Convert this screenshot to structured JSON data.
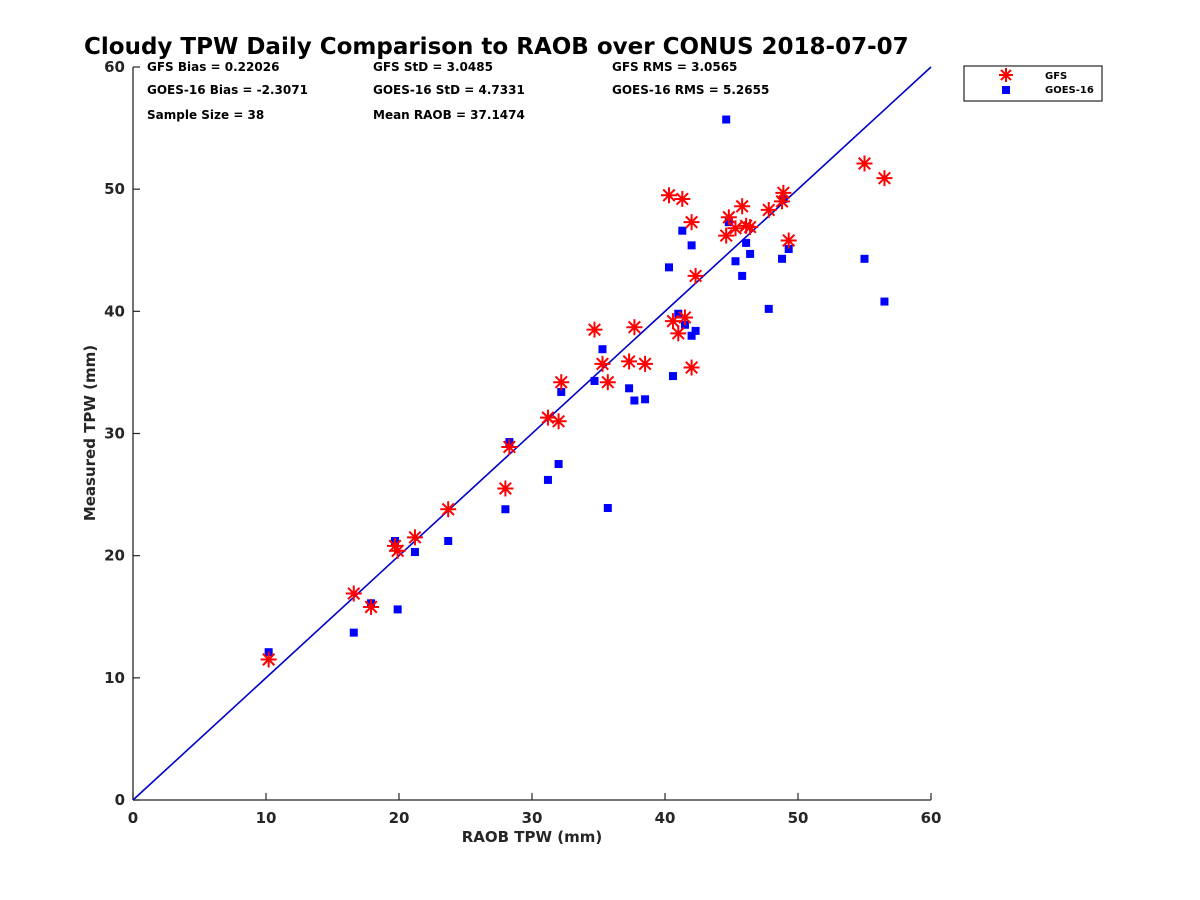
{
  "chart_data": {
    "type": "scatter",
    "title": "Cloudy TPW Daily Comparison to RAOB over CONUS 2018-07-07",
    "xlabel": "RAOB TPW (mm)",
    "ylabel": "Measured TPW (mm)",
    "xlim": [
      0,
      60
    ],
    "ylim": [
      0,
      60
    ],
    "xticks": [
      "0",
      "10",
      "20",
      "30",
      "40",
      "50",
      "60"
    ],
    "yticks": [
      "0",
      "10",
      "20",
      "30",
      "40",
      "50",
      "60"
    ],
    "grid": false,
    "legend_position": "top-right outside",
    "reference_line": {
      "name": "1:1 line",
      "x": [
        0,
        60
      ],
      "y": [
        0,
        60
      ],
      "color": "#0000cc"
    },
    "stats": {
      "gfs_bias": "GFS Bias = 0.22026",
      "gfs_std": "GFS StD = 3.0485",
      "gfs_rms": "GFS RMS = 3.0565",
      "goes_bias": "GOES-16 Bias = -2.3071",
      "goes_std": "GOES-16 StD = 4.7331",
      "goes_rms": "GOES-16 RMS = 5.2655",
      "sample_size": "Sample Size = 38",
      "mean_raob": "Mean RAOB = 37.1474"
    },
    "series": [
      {
        "name": "GFS",
        "marker": "asterisk",
        "color": "#ff0000",
        "points": [
          [
            10.2,
            11.5
          ],
          [
            16.6,
            16.9
          ],
          [
            17.9,
            15.8
          ],
          [
            19.7,
            20.8
          ],
          [
            19.9,
            20.4
          ],
          [
            21.2,
            21.5
          ],
          [
            23.7,
            23.8
          ],
          [
            28.0,
            25.5
          ],
          [
            28.3,
            28.9
          ],
          [
            31.2,
            31.3
          ],
          [
            32.0,
            31.0
          ],
          [
            32.2,
            34.2
          ],
          [
            34.7,
            38.5
          ],
          [
            35.3,
            35.7
          ],
          [
            35.7,
            34.2
          ],
          [
            37.3,
            35.9
          ],
          [
            37.7,
            38.7
          ],
          [
            38.5,
            35.7
          ],
          [
            40.3,
            49.5
          ],
          [
            40.6,
            39.2
          ],
          [
            41.0,
            38.2
          ],
          [
            41.3,
            49.2
          ],
          [
            41.5,
            39.5
          ],
          [
            42.0,
            47.3
          ],
          [
            42.0,
            35.4
          ],
          [
            42.3,
            42.9
          ],
          [
            44.6,
            46.2
          ],
          [
            44.8,
            47.7
          ],
          [
            45.3,
            46.8
          ],
          [
            45.8,
            48.6
          ],
          [
            46.1,
            47.0
          ],
          [
            46.4,
            46.9
          ],
          [
            47.8,
            48.3
          ],
          [
            48.8,
            49.0
          ],
          [
            48.9,
            49.7
          ],
          [
            49.3,
            45.8
          ],
          [
            55.0,
            52.1
          ],
          [
            56.5,
            50.9
          ]
        ]
      },
      {
        "name": "GOES-16",
        "marker": "square",
        "color": "#0000ff",
        "points": [
          [
            10.2,
            12.1
          ],
          [
            16.6,
            13.7
          ],
          [
            17.9,
            16.1
          ],
          [
            19.7,
            21.2
          ],
          [
            19.9,
            15.6
          ],
          [
            21.2,
            20.3
          ],
          [
            23.7,
            21.2
          ],
          [
            28.0,
            23.8
          ],
          [
            28.3,
            29.3
          ],
          [
            31.2,
            26.2
          ],
          [
            32.0,
            27.5
          ],
          [
            32.2,
            33.4
          ],
          [
            34.7,
            34.3
          ],
          [
            35.3,
            36.9
          ],
          [
            35.7,
            23.9
          ],
          [
            37.3,
            33.7
          ],
          [
            37.7,
            32.7
          ],
          [
            38.5,
            32.8
          ],
          [
            40.3,
            43.6
          ],
          [
            40.6,
            34.7
          ],
          [
            41.0,
            39.8
          ],
          [
            41.3,
            46.6
          ],
          [
            41.5,
            38.9
          ],
          [
            42.0,
            45.4
          ],
          [
            42.0,
            38.0
          ],
          [
            42.3,
            38.4
          ],
          [
            44.6,
            55.7
          ],
          [
            44.8,
            47.3
          ],
          [
            45.3,
            44.1
          ],
          [
            45.8,
            42.9
          ],
          [
            46.1,
            45.6
          ],
          [
            46.4,
            44.7
          ],
          [
            47.8,
            40.2
          ],
          [
            48.8,
            44.3
          ],
          [
            48.9,
            49.2
          ],
          [
            49.3,
            45.1
          ],
          [
            55.0,
            44.3
          ],
          [
            56.5,
            40.8
          ]
        ]
      }
    ]
  }
}
